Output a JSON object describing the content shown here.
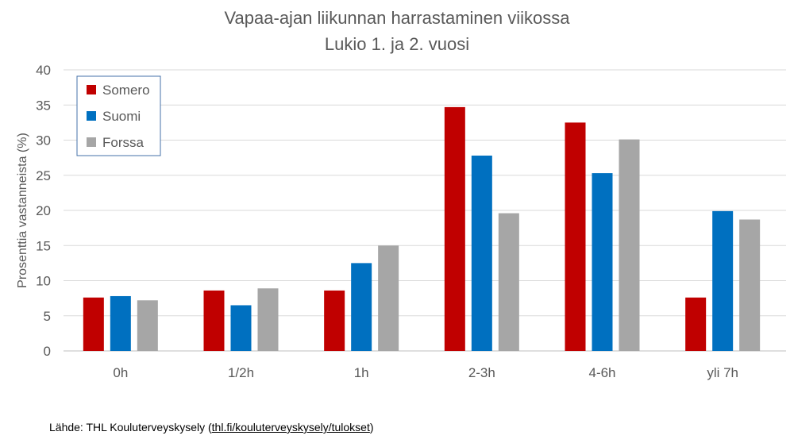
{
  "chart_data": {
    "type": "bar",
    "title": "Vapaa-ajan liikunnan harrastaminen viikossa",
    "subtitle": "Lukio 1. ja 2. vuosi",
    "xlabel": "",
    "ylabel": "Prosenttia vastanneista (%)",
    "ylim": [
      0,
      40
    ],
    "yticks": [
      0,
      5,
      10,
      15,
      20,
      25,
      30,
      35,
      40
    ],
    "grid": true,
    "legend_position": "top-left",
    "categories": [
      "0h",
      "1/2h",
      "1h",
      "2-3h",
      "4-6h",
      "yli 7h"
    ],
    "series": [
      {
        "name": "Somero",
        "color": "#c00000",
        "values": [
          7.6,
          8.6,
          8.6,
          34.7,
          32.5,
          7.6
        ]
      },
      {
        "name": "Suomi",
        "color": "#0070c0",
        "values": [
          7.8,
          6.5,
          12.5,
          27.8,
          25.3,
          19.9
        ]
      },
      {
        "name": "Forssa",
        "color": "#a6a6a6",
        "values": [
          7.2,
          8.9,
          15.0,
          19.6,
          30.1,
          18.7
        ]
      }
    ]
  },
  "source": {
    "prefix": "Lähde: THL Kouluterveyskysely  (",
    "link": "thl.fi/kouluterveyskysely/tulokset",
    "suffix": ")"
  }
}
